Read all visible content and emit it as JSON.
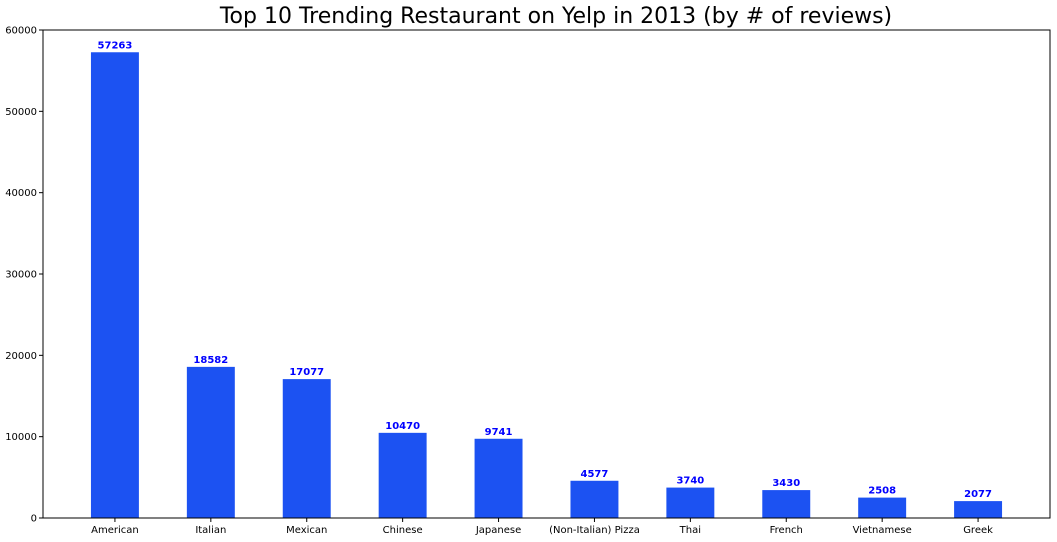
{
  "colors": {
    "bar": "#1c52f2",
    "value_label": "#0000ff",
    "axis": "#000000",
    "background": "#ffffff"
  },
  "chart_data": {
    "type": "bar",
    "title": "Top 10 Trending Restaurant on Yelp in 2013 (by # of reviews)",
    "xlabel": "",
    "ylabel": "",
    "categories": [
      "American",
      "Italian",
      "Mexican",
      "Chinese",
      "Japanese",
      "(Non-Italian) Pizza",
      "Thai",
      "French",
      "Vietnamese",
      "Greek"
    ],
    "values": [
      57263,
      18582,
      17077,
      10470,
      9741,
      4577,
      3740,
      3430,
      2508,
      2077
    ],
    "ylim": [
      0,
      60000
    ],
    "yticks": [
      0,
      10000,
      20000,
      30000,
      40000,
      50000,
      60000
    ],
    "grid": false,
    "legend": "none",
    "data_labels": true
  }
}
